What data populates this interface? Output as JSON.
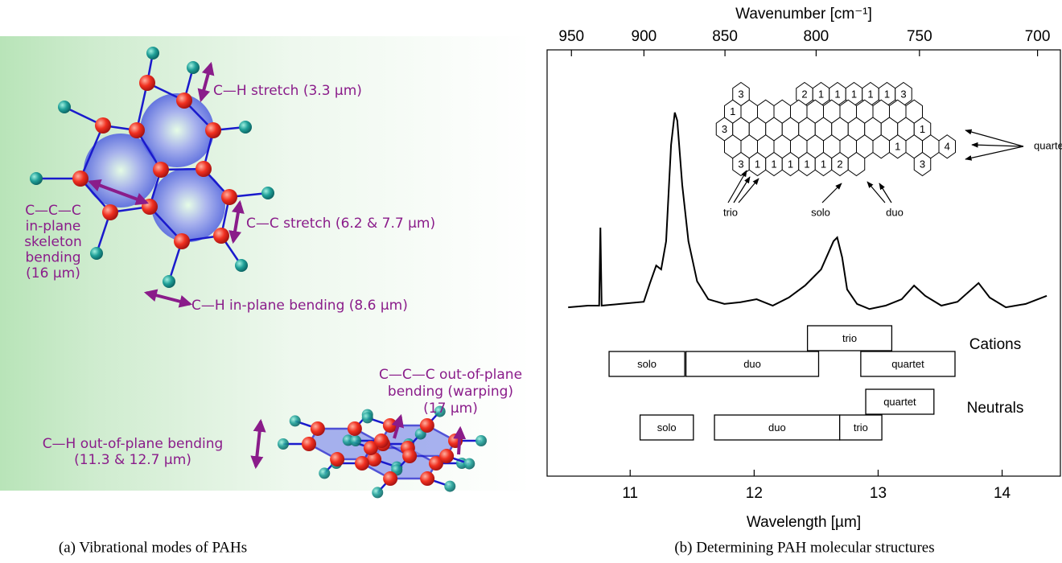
{
  "panel_a": {
    "caption": "(a) Vibrational modes of PAHs",
    "labels": {
      "ch_stretch": "C—H stretch (3.3 µm)",
      "cc_stretch": "C—C stretch (6.2 & 7.7 µm)",
      "ch_in_plane": "C—H in-plane bending (8.6 µm)",
      "ccc_in_plane": [
        "C—C—C",
        "in-plane",
        "skeleton",
        "bending",
        "(16 µm)"
      ],
      "ccc_out_of_plane": [
        "C—C—C out-of-plane",
        "bending (warping)",
        "(17 µm)"
      ],
      "ch_out_of_plane": [
        "C—H out-of-plane bending",
        "(11.3 & 12.7 µm)"
      ]
    }
  },
  "chart_data": {
    "type": "line",
    "caption": "(b) Determining PAH molecular structures",
    "xlabel": "Wavelength [µm]",
    "x2label": "Wavenumber [cm⁻¹]",
    "xlim": [
      10.33,
      14.47
    ],
    "xticks": [
      11,
      12,
      13,
      14
    ],
    "x2ticks": [
      950,
      900,
      850,
      800,
      750,
      700
    ],
    "ylim": [
      0,
      100
    ],
    "color": "#000000",
    "x": [
      10.5,
      10.66,
      10.75,
      10.76,
      10.77,
      10.92,
      11.11,
      11.16,
      11.21,
      11.25,
      11.29,
      11.33,
      11.36,
      11.38,
      11.42,
      11.47,
      11.54,
      11.63,
      11.76,
      11.89,
      12.02,
      12.15,
      12.28,
      12.41,
      12.54,
      12.64,
      12.67,
      12.71,
      12.75,
      12.83,
      12.93,
      13.06,
      13.19,
      13.29,
      13.38,
      13.51,
      13.64,
      13.81,
      13.9,
      14.03,
      14.19,
      14.36
    ],
    "values": [
      39.6,
      40.0,
      40.0,
      58.3,
      40.0,
      40.4,
      40.9,
      45.3,
      49.4,
      48.5,
      55.1,
      77.7,
      85.3,
      83.4,
      68.3,
      55.1,
      45.7,
      41.5,
      40.4,
      40.8,
      41.5,
      40.0,
      41.9,
      44.7,
      48.5,
      55.1,
      56.0,
      51.3,
      43.8,
      40.4,
      39.2,
      40.0,
      41.5,
      44.7,
      42.3,
      40.0,
      40.9,
      45.3,
      41.9,
      39.6,
      40.4,
      42.3
    ],
    "bands": [
      {
        "name": "Cations",
        "boxes": [
          {
            "label": "solo",
            "start": 10.83,
            "end": 11.44
          },
          {
            "label": "duo",
            "start": 11.45,
            "end": 12.52
          },
          {
            "label": "trio",
            "start": 12.43,
            "end": 13.11
          },
          {
            "label": "quartet",
            "start": 12.86,
            "end": 13.62
          }
        ]
      },
      {
        "name": "Neutrals",
        "boxes": [
          {
            "label": "solo",
            "start": 11.08,
            "end": 11.51
          },
          {
            "label": "duo",
            "start": 11.68,
            "end": 12.69
          },
          {
            "label": "trio",
            "start": 12.69,
            "end": 13.03
          },
          {
            "label": "quartet",
            "start": 12.9,
            "end": 13.45
          }
        ]
      }
    ],
    "inset": {
      "hex_labels": [
        "3",
        "2",
        "1",
        "1",
        "1",
        "1",
        "1",
        "3",
        "1",
        "3",
        "1",
        "1",
        "4",
        "3",
        "1",
        "1",
        "1",
        "1",
        "1",
        "2",
        "3"
      ],
      "annotations": [
        "trio",
        "solo",
        "duo",
        "quartet"
      ]
    }
  }
}
